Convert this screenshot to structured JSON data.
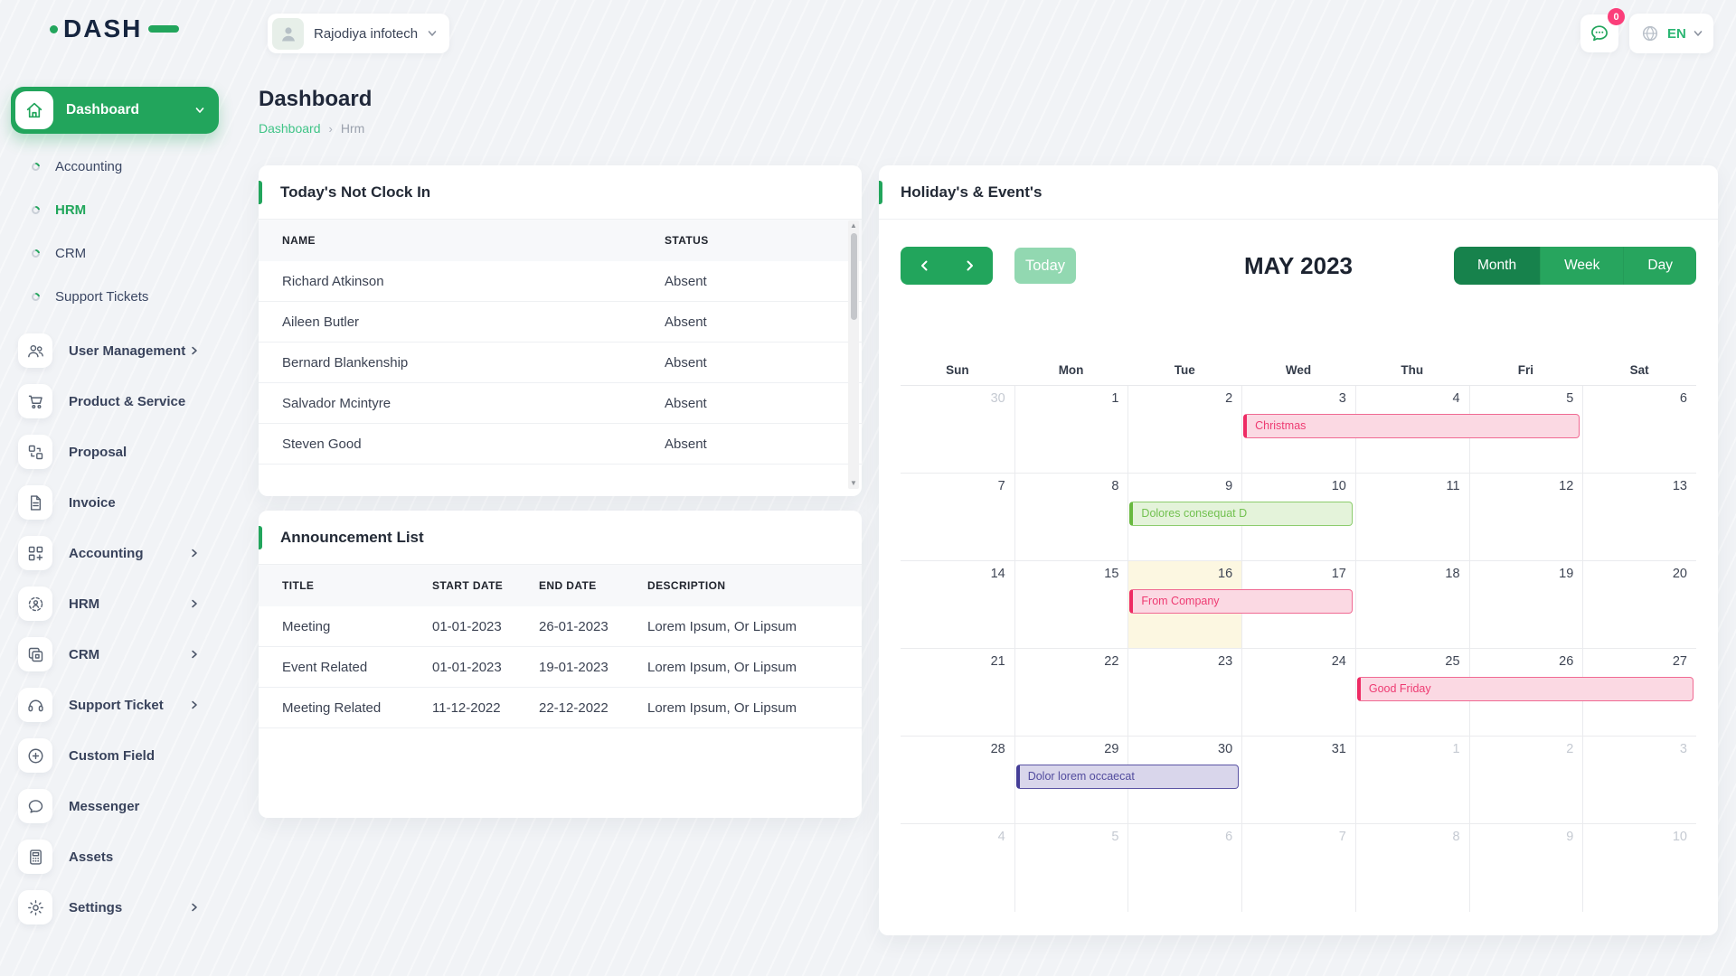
{
  "topbar": {
    "logo_text": "DASH",
    "company_name": "Rajodiya infotech",
    "messages_badge": "0",
    "language": "EN"
  },
  "page": {
    "title": "Dashboard",
    "breadcrumb_root": "Dashboard",
    "breadcrumb_current": "Hrm"
  },
  "sidebar": {
    "dashboard_label": "Dashboard",
    "sub_items": [
      {
        "label": "Accounting",
        "active": false
      },
      {
        "label": "HRM",
        "active": true
      },
      {
        "label": "CRM",
        "active": false
      },
      {
        "label": "Support Tickets",
        "active": false
      }
    ],
    "items": [
      {
        "label": "User Management",
        "icon": "users-icon",
        "chevron": true
      },
      {
        "label": "Product & Service",
        "icon": "cart-icon",
        "chevron": false
      },
      {
        "label": "Proposal",
        "icon": "swap-boxes-icon",
        "chevron": false
      },
      {
        "label": "Invoice",
        "icon": "document-icon",
        "chevron": false
      },
      {
        "label": "Accounting",
        "icon": "grid-plus-icon",
        "chevron": true
      },
      {
        "label": "HRM",
        "icon": "person-target-icon",
        "chevron": true
      },
      {
        "label": "CRM",
        "icon": "windows-icon",
        "chevron": true
      },
      {
        "label": "Support Ticket",
        "icon": "headset-icon",
        "chevron": true
      },
      {
        "label": "Custom Field",
        "icon": "plus-circle-icon",
        "chevron": false
      },
      {
        "label": "Messenger",
        "icon": "chat-icon",
        "chevron": false
      },
      {
        "label": "Assets",
        "icon": "calculator-icon",
        "chevron": false
      },
      {
        "label": "Settings",
        "icon": "gear-icon",
        "chevron": true
      }
    ]
  },
  "clockin_card": {
    "title": "Today's Not Clock In",
    "columns": [
      "NAME",
      "STATUS"
    ],
    "rows": [
      [
        "Richard Atkinson",
        "Absent"
      ],
      [
        "Aileen Butler",
        "Absent"
      ],
      [
        "Bernard Blankenship",
        "Absent"
      ],
      [
        "Salvador Mcintyre",
        "Absent"
      ],
      [
        "Steven Good",
        "Absent"
      ]
    ]
  },
  "announcement_card": {
    "title": "Announcement List",
    "columns": [
      "TITLE",
      "START DATE",
      "END DATE",
      "DESCRIPTION"
    ],
    "rows": [
      [
        "Meeting",
        "01-01-2023",
        "26-01-2023",
        "Lorem Ipsum, Or Lipsum"
      ],
      [
        "Event Related",
        "01-01-2023",
        "19-01-2023",
        "Lorem Ipsum, Or Lipsum"
      ],
      [
        "Meeting Related",
        "11-12-2022",
        "22-12-2022",
        "Lorem Ipsum, Or Lipsum"
      ]
    ]
  },
  "calendar_card": {
    "title": "Holiday's & Event's",
    "toolbar": {
      "today_label": "Today",
      "month_title": "MAY 2023",
      "views": [
        "Month",
        "Week",
        "Day"
      ],
      "active_view": "Month"
    },
    "day_headers": [
      "Sun",
      "Mon",
      "Tue",
      "Wed",
      "Thu",
      "Fri",
      "Sat"
    ],
    "weeks": [
      [
        {
          "n": 30,
          "muted": true
        },
        {
          "n": 1
        },
        {
          "n": 2
        },
        {
          "n": 3
        },
        {
          "n": 4
        },
        {
          "n": 5
        },
        {
          "n": 6
        }
      ],
      [
        {
          "n": 7
        },
        {
          "n": 8
        },
        {
          "n": 9
        },
        {
          "n": 10
        },
        {
          "n": 11
        },
        {
          "n": 12
        },
        {
          "n": 13
        }
      ],
      [
        {
          "n": 14
        },
        {
          "n": 15
        },
        {
          "n": 16,
          "today": true
        },
        {
          "n": 17
        },
        {
          "n": 18
        },
        {
          "n": 19
        },
        {
          "n": 20
        }
      ],
      [
        {
          "n": 21
        },
        {
          "n": 22
        },
        {
          "n": 23
        },
        {
          "n": 24
        },
        {
          "n": 25
        },
        {
          "n": 26
        },
        {
          "n": 27
        }
      ],
      [
        {
          "n": 28
        },
        {
          "n": 29
        },
        {
          "n": 30
        },
        {
          "n": 31
        },
        {
          "n": 1,
          "muted": true
        },
        {
          "n": 2,
          "muted": true
        },
        {
          "n": 3,
          "muted": true
        }
      ],
      [
        {
          "n": 4,
          "muted": true
        },
        {
          "n": 5,
          "muted": true
        },
        {
          "n": 6,
          "muted": true
        },
        {
          "n": 7,
          "muted": true
        },
        {
          "n": 8,
          "muted": true
        },
        {
          "n": 9,
          "muted": true
        },
        {
          "n": 10,
          "muted": true
        }
      ]
    ],
    "events": [
      {
        "label": "Christmas",
        "week": 0,
        "col": 3,
        "span": 3,
        "color": "pink"
      },
      {
        "label": "Dolores consequat D",
        "week": 1,
        "col": 2,
        "span": 2,
        "color": "green"
      },
      {
        "label": "From Company",
        "week": 2,
        "col": 2,
        "span": 2,
        "color": "pink"
      },
      {
        "label": "Good Friday",
        "week": 3,
        "col": 4,
        "span": 3,
        "color": "pink"
      },
      {
        "label": "Dolor lorem occaecat",
        "week": 4,
        "col": 1,
        "span": 2,
        "color": "purple"
      }
    ],
    "colors": {
      "primary_green": "#22a55c",
      "event_pink": "#ee3b72",
      "event_green": "#72c150",
      "event_purple": "#524c9e",
      "today_cell_bg": "#fcf7e1"
    }
  }
}
